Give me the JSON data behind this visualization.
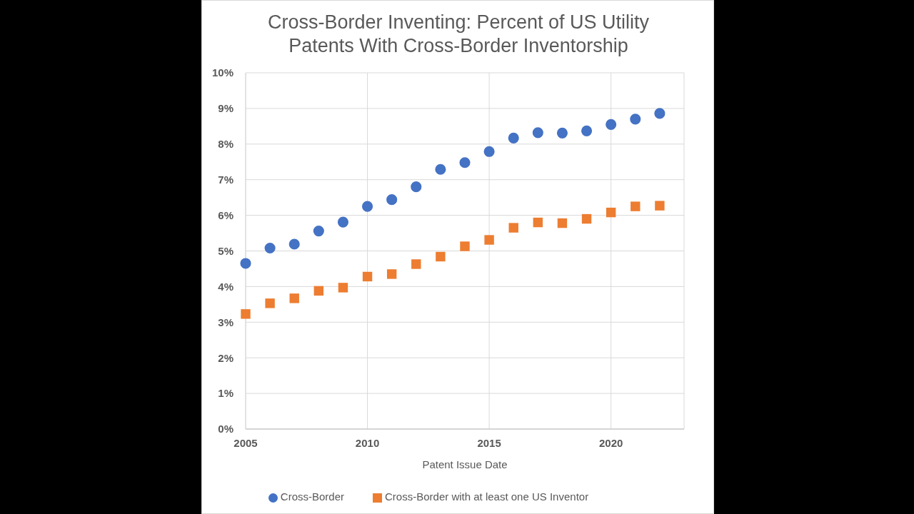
{
  "chart_data": {
    "type": "scatter",
    "title": "Cross-Border Inventing: Percent of US Utility Patents With Cross-Border Inventorship",
    "xlabel": "Patent Issue Date",
    "x": [
      2005,
      2006,
      2007,
      2008,
      2009,
      2010,
      2011,
      2012,
      2013,
      2014,
      2015,
      2016,
      2017,
      2018,
      2019,
      2020,
      2021,
      2022
    ],
    "series": [
      {
        "name": "Cross-Border",
        "color": "#4472c4",
        "marker": "circle",
        "values": [
          4.65,
          5.08,
          5.19,
          5.56,
          5.81,
          6.25,
          6.44,
          6.8,
          7.29,
          7.48,
          7.79,
          8.17,
          8.32,
          8.31,
          8.37,
          8.55,
          8.7,
          8.86
        ]
      },
      {
        "name": "Cross-Border with at least one US Inventor",
        "color": "#ed7d31",
        "marker": "square",
        "values": [
          3.23,
          3.53,
          3.67,
          3.88,
          3.97,
          4.28,
          4.35,
          4.63,
          4.84,
          5.13,
          5.31,
          5.65,
          5.8,
          5.78,
          5.9,
          6.08,
          6.25,
          6.27
        ]
      }
    ],
    "xlim": [
      2005,
      2023
    ],
    "xticks": [
      2005,
      2010,
      2015,
      2020
    ],
    "ylim": [
      0,
      10
    ],
    "yticks": [
      {
        "value": 0,
        "label": "0%"
      },
      {
        "value": 1,
        "label": "1%"
      },
      {
        "value": 2,
        "label": "2%"
      },
      {
        "value": 3,
        "label": "3%"
      },
      {
        "value": 4,
        "label": "4%"
      },
      {
        "value": 5,
        "label": "5%"
      },
      {
        "value": 6,
        "label": "6%"
      },
      {
        "value": 7,
        "label": "7%"
      },
      {
        "value": 8,
        "label": "8%"
      },
      {
        "value": 9,
        "label": "9%"
      },
      {
        "value": 10,
        "label": "10%"
      }
    ],
    "grid": true,
    "legend": "bottom"
  }
}
